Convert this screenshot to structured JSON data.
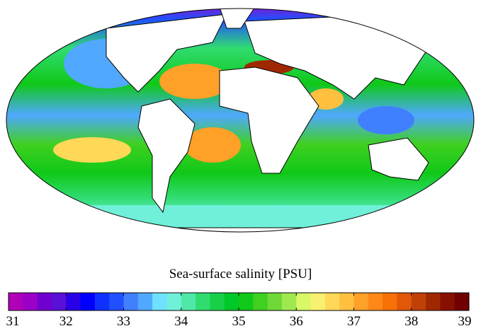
{
  "map": {
    "projection": "Mollweide",
    "quantity": "sea-surface salinity",
    "land_color": "#ffffff",
    "coastline_color": "#000000"
  },
  "colorbar": {
    "title": "Sea-surface salinity [PSU]",
    "min": 31,
    "max": 39,
    "ticks": [
      "31",
      "32",
      "33",
      "34",
      "35",
      "36",
      "37",
      "38",
      "39"
    ],
    "step": 0.25,
    "colors": [
      "#b000b8",
      "#9a00c8",
      "#7000d0",
      "#5a10d8",
      "#2a00e8",
      "#0000ff",
      "#1030ff",
      "#2050ff",
      "#4080ff",
      "#50a8ff",
      "#70e0ff",
      "#70f0d8",
      "#50e8a8",
      "#30dc70",
      "#18d048",
      "#00c828",
      "#10c818",
      "#40d020",
      "#70d838",
      "#a0e850",
      "#d8f868",
      "#f8f070",
      "#ffd858",
      "#ffc040",
      "#ffa028",
      "#ff8818",
      "#f87008",
      "#e05808",
      "#c04008",
      "#a02800",
      "#881000",
      "#700000"
    ]
  }
}
